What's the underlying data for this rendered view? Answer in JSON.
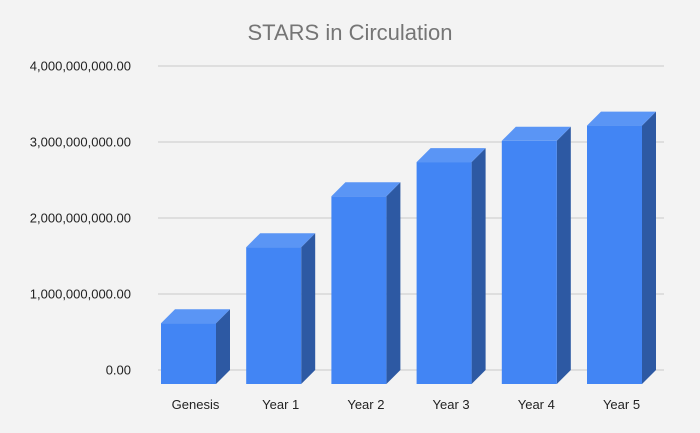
{
  "chart_data": {
    "type": "bar",
    "title": "STARS in Circulation",
    "xlabel": "",
    "ylabel": "",
    "categories": [
      "Genesis",
      "Year 1",
      "Year 2",
      "Year 3",
      "Year 4",
      "Year 5"
    ],
    "values": [
      800000000,
      1800000000,
      2470000000,
      2920000000,
      3200000000,
      3400000000
    ],
    "y_ticks": [
      0,
      1000000000,
      2000000000,
      3000000000,
      4000000000
    ],
    "y_tick_labels": [
      "0.00",
      "1,000,000,000.00",
      "2,000,000,000.00",
      "3,000,000,000.00",
      "4,000,000,000.00"
    ],
    "ylim": [
      0,
      4000000000
    ],
    "grid": true,
    "legend": "none",
    "style": "3d",
    "colors": {
      "bar_front": "#4285f4",
      "bar_top": "#5a95f5",
      "bar_side": "#2d59a3",
      "grid": "#c8c8c8",
      "background": "#f3f3f3"
    }
  }
}
